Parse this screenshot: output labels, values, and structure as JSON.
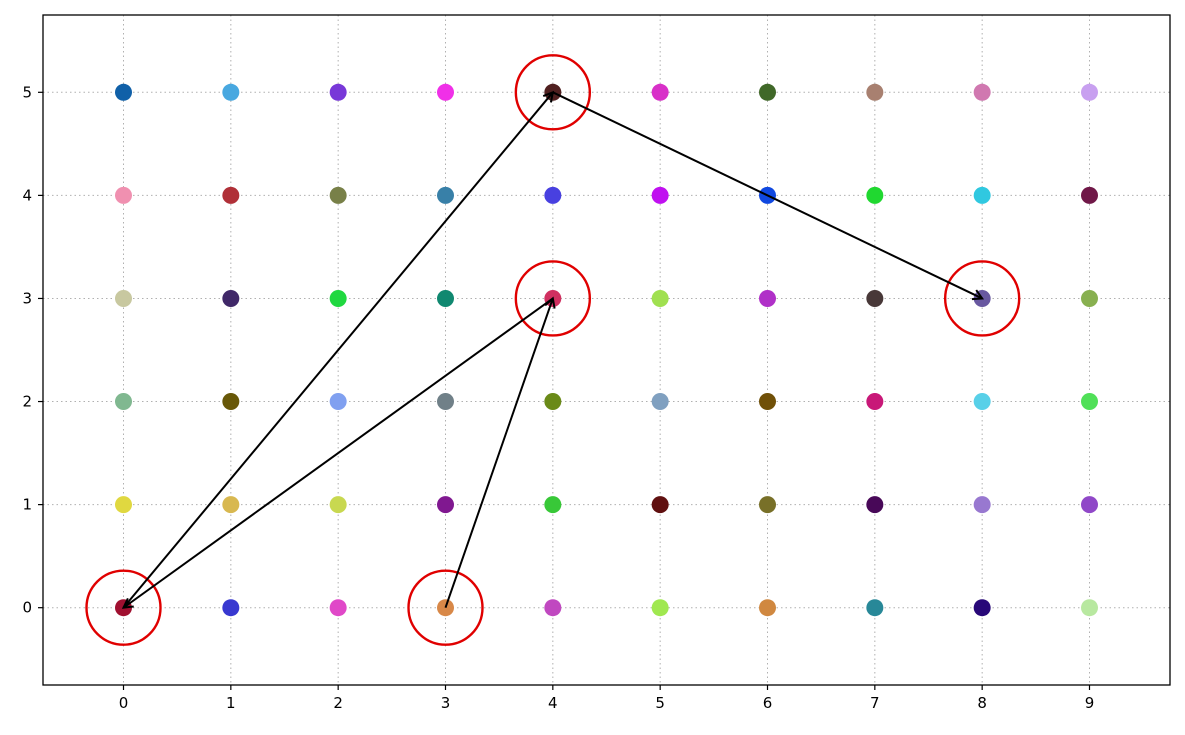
{
  "chart_data": {
    "type": "scatter",
    "title": "",
    "xlabel": "",
    "ylabel": "",
    "xlim": [
      -0.75,
      9.75
    ],
    "ylim": [
      -0.75,
      5.75
    ],
    "grid": true,
    "x_ticks": [
      "0",
      "1",
      "2",
      "3",
      "4",
      "5",
      "6",
      "7",
      "8",
      "9"
    ],
    "y_ticks": [
      "0",
      "1",
      "2",
      "3",
      "4",
      "5"
    ],
    "points": [
      {
        "x": 0,
        "y": 5,
        "color": "#1060a8"
      },
      {
        "x": 1,
        "y": 5,
        "color": "#48a8e0"
      },
      {
        "x": 2,
        "y": 5,
        "color": "#7838d8"
      },
      {
        "x": 3,
        "y": 5,
        "color": "#f030e8"
      },
      {
        "x": 4,
        "y": 5,
        "color": "#502020"
      },
      {
        "x": 5,
        "y": 5,
        "color": "#d830c8"
      },
      {
        "x": 6,
        "y": 5,
        "color": "#406828"
      },
      {
        "x": 7,
        "y": 5,
        "color": "#a88070"
      },
      {
        "x": 8,
        "y": 5,
        "color": "#d078b0"
      },
      {
        "x": 9,
        "y": 5,
        "color": "#c8a0f0"
      },
      {
        "x": 0,
        "y": 4,
        "color": "#f090b0"
      },
      {
        "x": 1,
        "y": 4,
        "color": "#b03038"
      },
      {
        "x": 2,
        "y": 4,
        "color": "#788048"
      },
      {
        "x": 3,
        "y": 4,
        "color": "#3880a8"
      },
      {
        "x": 4,
        "y": 4,
        "color": "#4840e0"
      },
      {
        "x": 5,
        "y": 4,
        "color": "#c010f0"
      },
      {
        "x": 6,
        "y": 4,
        "color": "#1048e0"
      },
      {
        "x": 7,
        "y": 4,
        "color": "#20d830"
      },
      {
        "x": 8,
        "y": 4,
        "color": "#30c8e0"
      },
      {
        "x": 9,
        "y": 4,
        "color": "#701848"
      },
      {
        "x": 0,
        "y": 3,
        "color": "#c8c8a0"
      },
      {
        "x": 1,
        "y": 3,
        "color": "#402868"
      },
      {
        "x": 2,
        "y": 3,
        "color": "#20d840"
      },
      {
        "x": 3,
        "y": 3,
        "color": "#108870"
      },
      {
        "x": 4,
        "y": 3,
        "color": "#d03060"
      },
      {
        "x": 5,
        "y": 3,
        "color": "#a0e050"
      },
      {
        "x": 6,
        "y": 3,
        "color": "#b030c8"
      },
      {
        "x": 7,
        "y": 3,
        "color": "#483838"
      },
      {
        "x": 8,
        "y": 3,
        "color": "#6858a0"
      },
      {
        "x": 9,
        "y": 3,
        "color": "#88b050"
      },
      {
        "x": 0,
        "y": 2,
        "color": "#80b890"
      },
      {
        "x": 1,
        "y": 2,
        "color": "#685808"
      },
      {
        "x": 2,
        "y": 2,
        "color": "#80a0f0"
      },
      {
        "x": 3,
        "y": 2,
        "color": "#708088"
      },
      {
        "x": 4,
        "y": 2,
        "color": "#6a8a18"
      },
      {
        "x": 5,
        "y": 2,
        "color": "#80a0c0"
      },
      {
        "x": 6,
        "y": 2,
        "color": "#705008"
      },
      {
        "x": 7,
        "y": 2,
        "color": "#c81878"
      },
      {
        "x": 8,
        "y": 2,
        "color": "#58d0e8"
      },
      {
        "x": 9,
        "y": 2,
        "color": "#50e058"
      },
      {
        "x": 0,
        "y": 1,
        "color": "#e0d840"
      },
      {
        "x": 1,
        "y": 1,
        "color": "#d8b850"
      },
      {
        "x": 2,
        "y": 1,
        "color": "#c8d850"
      },
      {
        "x": 3,
        "y": 1,
        "color": "#801890"
      },
      {
        "x": 4,
        "y": 1,
        "color": "#38c838"
      },
      {
        "x": 5,
        "y": 1,
        "color": "#601010"
      },
      {
        "x": 6,
        "y": 1,
        "color": "#787028"
      },
      {
        "x": 7,
        "y": 1,
        "color": "#480858"
      },
      {
        "x": 8,
        "y": 1,
        "color": "#9878d0"
      },
      {
        "x": 9,
        "y": 1,
        "color": "#9048c8"
      },
      {
        "x": 0,
        "y": 0,
        "color": "#a01030"
      },
      {
        "x": 1,
        "y": 0,
        "color": "#3838d0"
      },
      {
        "x": 2,
        "y": 0,
        "color": "#e048c8"
      },
      {
        "x": 3,
        "y": 0,
        "color": "#d88848"
      },
      {
        "x": 4,
        "y": 0,
        "color": "#c048c0"
      },
      {
        "x": 5,
        "y": 0,
        "color": "#a0e850"
      },
      {
        "x": 6,
        "y": 0,
        "color": "#d08840"
      },
      {
        "x": 7,
        "y": 0,
        "color": "#288898"
      },
      {
        "x": 8,
        "y": 0,
        "color": "#280878"
      },
      {
        "x": 9,
        "y": 0,
        "color": "#b8e8a0"
      }
    ],
    "highlighted": [
      {
        "x": 0,
        "y": 0
      },
      {
        "x": 3,
        "y": 0
      },
      {
        "x": 4,
        "y": 3
      },
      {
        "x": 4,
        "y": 5
      },
      {
        "x": 8,
        "y": 3
      }
    ],
    "highlight_color": "#e00000",
    "arrows": [
      {
        "from": [
          3,
          0
        ],
        "to": [
          4,
          3
        ]
      },
      {
        "from": [
          4,
          3
        ],
        "to": [
          0,
          0
        ]
      },
      {
        "from": [
          0,
          0
        ],
        "to": [
          4,
          5
        ]
      },
      {
        "from": [
          4,
          5
        ],
        "to": [
          8,
          3
        ]
      }
    ],
    "arrow_color": "#000000"
  }
}
